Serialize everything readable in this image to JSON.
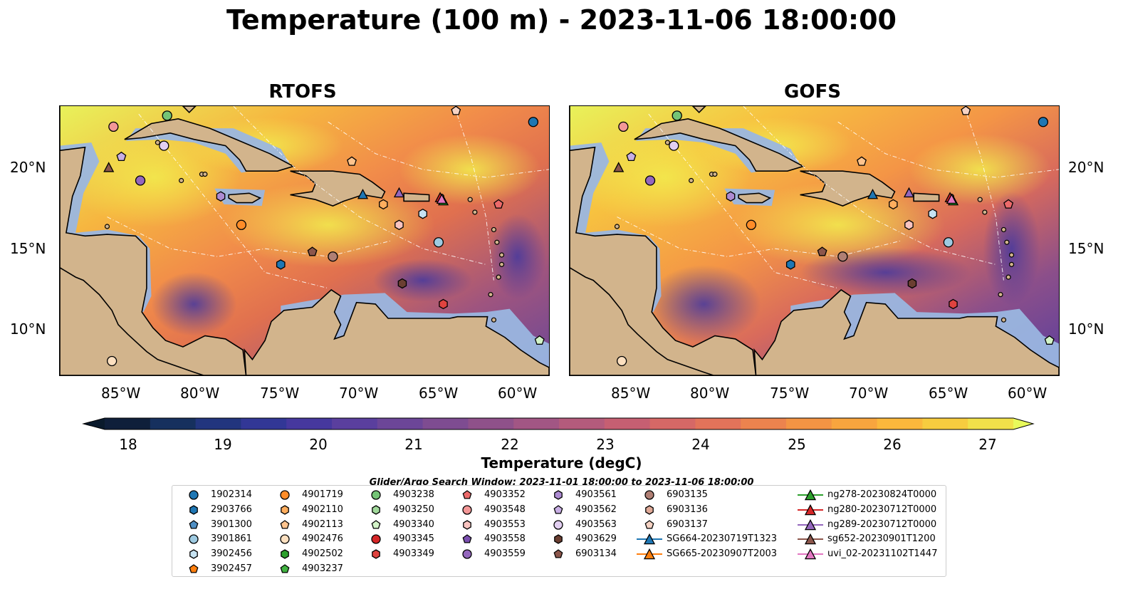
{
  "title": "Temperature (100 m) - 2023-11-06 18:00:00",
  "panels": [
    {
      "title": "RTOFS"
    },
    {
      "title": "GOFS"
    }
  ],
  "axes": {
    "y_ticks": [
      "20°N",
      "15°N",
      "10°N"
    ],
    "x_ticks": [
      "85°W",
      "80°W",
      "75°W",
      "70°W",
      "65°W",
      "60°W"
    ]
  },
  "colorbar": {
    "label": "Temperature (degC)",
    "ticks": [
      "18",
      "19",
      "20",
      "21",
      "22",
      "23",
      "24",
      "25",
      "26",
      "27"
    ],
    "colors": [
      "#0f1f3a",
      "#16305e",
      "#22357e",
      "#323796",
      "#46389e",
      "#5a3f9e",
      "#6c4698",
      "#7e4c91",
      "#8f518a",
      "#a25684",
      "#b45b7c",
      "#c65f72",
      "#d66866",
      "#e2735a",
      "#ec834e",
      "#f39444",
      "#f8a53e",
      "#fbb83c",
      "#f7cc3f",
      "#f1e14a"
    ],
    "extend_low": "#0a1a2c",
    "extend_high": "#e8fa5b"
  },
  "legend": {
    "search_window": "Glider/Argo Search Window: 2023-11-01 18:00:00 to 2023-11-06 18:00:00",
    "items": [
      {
        "label": "1902314",
        "marker": "circle",
        "color": "#1f77b4"
      },
      {
        "label": "2903766",
        "marker": "hexagon",
        "color": "#1f77b4"
      },
      {
        "label": "3901300",
        "marker": "pentagon",
        "color": "#4f8fc4"
      },
      {
        "label": "3901861",
        "marker": "circle",
        "color": "#9ecae1"
      },
      {
        "label": "3902456",
        "marker": "hexagon",
        "color": "#c6e2f1"
      },
      {
        "label": "3902457",
        "marker": "pentagon",
        "color": "#ff7f0e"
      },
      {
        "label": "4901719",
        "marker": "circle",
        "color": "#ff8c28"
      },
      {
        "label": "4902110",
        "marker": "hexagon",
        "color": "#ffae5e"
      },
      {
        "label": "4902113",
        "marker": "pentagon",
        "color": "#ffc48e"
      },
      {
        "label": "4902476",
        "marker": "circle",
        "color": "#fde0c0"
      },
      {
        "label": "4902502",
        "marker": "hexagon",
        "color": "#2ca02c"
      },
      {
        "label": "4903237",
        "marker": "pentagon",
        "color": "#41b341"
      },
      {
        "label": "4903238",
        "marker": "circle",
        "color": "#74c476"
      },
      {
        "label": "4903250",
        "marker": "hexagon",
        "color": "#a1d99b"
      },
      {
        "label": "4903340",
        "marker": "pentagon",
        "color": "#d3f4c8"
      },
      {
        "label": "4903345",
        "marker": "circle",
        "color": "#d62728"
      },
      {
        "label": "4903349",
        "marker": "hexagon",
        "color": "#e0433f"
      },
      {
        "label": "4903352",
        "marker": "pentagon",
        "color": "#ec6a6a"
      },
      {
        "label": "4903548",
        "marker": "circle",
        "color": "#f39797"
      },
      {
        "label": "4903553",
        "marker": "hexagon",
        "color": "#f9c4c0"
      },
      {
        "label": "4903558",
        "marker": "pentagon",
        "color": "#7b4fb0"
      },
      {
        "label": "4903559",
        "marker": "circle",
        "color": "#9467bd"
      },
      {
        "label": "4903561",
        "marker": "hexagon",
        "color": "#ad8bd2"
      },
      {
        "label": "4903562",
        "marker": "pentagon",
        "color": "#c8aee4"
      },
      {
        "label": "4903563",
        "marker": "circle",
        "color": "#e2cff1"
      },
      {
        "label": "4903629",
        "marker": "hexagon",
        "color": "#6b3f32"
      },
      {
        "label": "6903134",
        "marker": "pentagon",
        "color": "#8c564b"
      },
      {
        "label": "6903135",
        "marker": "circle",
        "color": "#b07f74"
      },
      {
        "label": "6903136",
        "marker": "hexagon",
        "color": "#e0aa98"
      },
      {
        "label": "6903137",
        "marker": "pentagon",
        "color": "#f6d3c4"
      },
      {
        "label": "SG664-20230719T1323",
        "marker": "triangle-line",
        "color": "#1f77b4"
      },
      {
        "label": "SG665-20230907T2003",
        "marker": "triangle-line",
        "color": "#ff7f0e"
      },
      {
        "label": "ng278-20230824T0000",
        "marker": "triangle-line",
        "color": "#2ca02c"
      },
      {
        "label": "ng280-20230712T0000",
        "marker": "triangle-line",
        "color": "#d62728"
      },
      {
        "label": "ng289-20230712T0000",
        "marker": "triangle-line",
        "color": "#9467bd"
      },
      {
        "label": "sg652-20230901T1200",
        "marker": "triangle-line",
        "color": "#8c564b"
      },
      {
        "label": "uvi_02-20231102T1447",
        "marker": "triangle-line",
        "color": "#e377c2"
      }
    ]
  },
  "map_colors": {
    "land": "#d2b48c",
    "shelf": "#9ab6e0",
    "pacific": "#0d2438"
  },
  "map_extent": {
    "lon": [
      -89,
      -58
    ],
    "lat": [
      7,
      24
    ]
  },
  "panel_markers": [
    [
      {
        "item": "1902314",
        "lon": -59.0,
        "lat": 23.0
      },
      {
        "item": "2903766",
        "lon": -75.0,
        "lat": 14.0
      },
      {
        "item": "3901861",
        "lon": -65.0,
        "lat": 15.4
      },
      {
        "item": "3902456",
        "lon": -66.0,
        "lat": 17.2
      },
      {
        "item": "4901719",
        "lon": -77.5,
        "lat": 16.5
      },
      {
        "item": "4902110",
        "lon": -68.5,
        "lat": 17.8
      },
      {
        "item": "4902113",
        "lon": -70.5,
        "lat": 20.5
      },
      {
        "item": "4902476",
        "lon": -85.7,
        "lat": 7.9
      },
      {
        "item": "4903238",
        "lon": -82.2,
        "lat": 23.4
      },
      {
        "item": "4903340",
        "lon": -58.6,
        "lat": 9.2
      },
      {
        "item": "4903349",
        "lon": -64.7,
        "lat": 11.5
      },
      {
        "item": "4903352",
        "lon": -61.2,
        "lat": 17.8
      },
      {
        "item": "4903548",
        "lon": -85.6,
        "lat": 22.7
      },
      {
        "item": "4903553",
        "lon": -67.5,
        "lat": 16.5
      },
      {
        "item": "4903559",
        "lon": -83.9,
        "lat": 19.3
      },
      {
        "item": "4903561",
        "lon": -78.8,
        "lat": 18.3
      },
      {
        "item": "4903562",
        "lon": -85.1,
        "lat": 20.8
      },
      {
        "item": "4903563",
        "lon": -82.4,
        "lat": 21.5
      },
      {
        "item": "4903629",
        "lon": -67.3,
        "lat": 12.8
      },
      {
        "item": "6903134",
        "lon": -73.0,
        "lat": 14.8
      },
      {
        "item": "6903135",
        "lon": -71.7,
        "lat": 14.5
      },
      {
        "item": "6903137",
        "lon": -63.9,
        "lat": 23.7
      },
      {
        "item": "SG664-20230719T1323",
        "lon": -69.8,
        "lat": 18.4
      },
      {
        "item": "ng278-20230824T0000",
        "lon": -64.7,
        "lat": 18.0
      },
      {
        "item": "ng280-20230712T0000",
        "lon": -64.9,
        "lat": 18.2
      },
      {
        "item": "ng289-20230712T0000",
        "lon": -67.5,
        "lat": 18.5
      },
      {
        "item": "sg652-20230901T1200",
        "lon": -85.9,
        "lat": 20.1
      },
      {
        "item": "uvi_02-20231102T1447",
        "lon": -64.8,
        "lat": 18.1
      }
    ],
    [
      {
        "item": "1902314",
        "lon": -59.0,
        "lat": 23.0
      },
      {
        "item": "2903766",
        "lon": -75.0,
        "lat": 14.0
      },
      {
        "item": "3901861",
        "lon": -65.0,
        "lat": 15.4
      },
      {
        "item": "3902456",
        "lon": -66.0,
        "lat": 17.2
      },
      {
        "item": "4901719",
        "lon": -77.5,
        "lat": 16.5
      },
      {
        "item": "4902110",
        "lon": -68.5,
        "lat": 17.8
      },
      {
        "item": "4902113",
        "lon": -70.5,
        "lat": 20.5
      },
      {
        "item": "4902476",
        "lon": -85.7,
        "lat": 7.9
      },
      {
        "item": "4903238",
        "lon": -82.2,
        "lat": 23.4
      },
      {
        "item": "4903340",
        "lon": -58.6,
        "lat": 9.2
      },
      {
        "item": "4903349",
        "lon": -64.7,
        "lat": 11.5
      },
      {
        "item": "4903352",
        "lon": -61.2,
        "lat": 17.8
      },
      {
        "item": "4903548",
        "lon": -85.6,
        "lat": 22.7
      },
      {
        "item": "4903553",
        "lon": -67.5,
        "lat": 16.5
      },
      {
        "item": "4903559",
        "lon": -83.9,
        "lat": 19.3
      },
      {
        "item": "4903561",
        "lon": -78.8,
        "lat": 18.3
      },
      {
        "item": "4903562",
        "lon": -85.1,
        "lat": 20.8
      },
      {
        "item": "4903563",
        "lon": -82.4,
        "lat": 21.5
      },
      {
        "item": "4903629",
        "lon": -67.3,
        "lat": 12.8
      },
      {
        "item": "6903134",
        "lon": -73.0,
        "lat": 14.8
      },
      {
        "item": "6903135",
        "lon": -71.7,
        "lat": 14.5
      },
      {
        "item": "6903137",
        "lon": -63.9,
        "lat": 23.7
      },
      {
        "item": "SG664-20230719T1323",
        "lon": -69.8,
        "lat": 18.4
      },
      {
        "item": "ng278-20230824T0000",
        "lon": -64.7,
        "lat": 18.0
      },
      {
        "item": "ng280-20230712T0000",
        "lon": -64.9,
        "lat": 18.2
      },
      {
        "item": "ng289-20230712T0000",
        "lon": -67.5,
        "lat": 18.5
      },
      {
        "item": "sg652-20230901T1200",
        "lon": -85.9,
        "lat": 20.1
      },
      {
        "item": "uvi_02-20231102T1447",
        "lon": -64.8,
        "lat": 18.1
      }
    ]
  ]
}
